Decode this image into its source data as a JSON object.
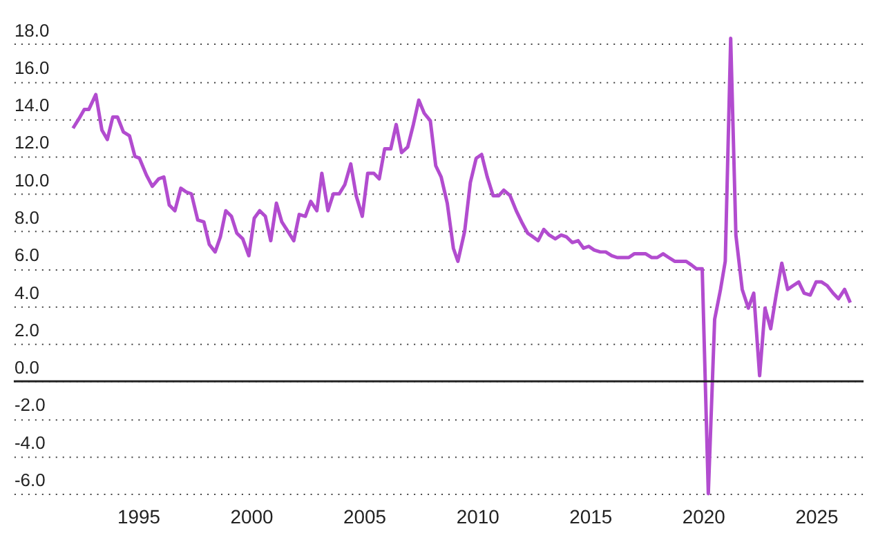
{
  "chart_data": {
    "type": "line",
    "x": [
      1992.12,
      1992.38,
      1992.62,
      1992.82,
      1993.13,
      1993.4,
      1993.64,
      1993.88,
      1994.09,
      1994.35,
      1994.62,
      1994.86,
      1995.06,
      1995.37,
      1995.63,
      1995.91,
      1996.14,
      1996.38,
      1996.63,
      1996.89,
      1997.13,
      1997.36,
      1997.64,
      1997.91,
      1998.15,
      1998.41,
      1998.64,
      1998.88,
      1999.13,
      1999.37,
      1999.63,
      1999.9,
      2000.14,
      2000.38,
      2000.63,
      2000.87,
      2001.12,
      2001.36,
      2001.63,
      2001.89,
      2002.13,
      2002.4,
      2002.64,
      2002.91,
      2003.13,
      2003.4,
      2003.64,
      2003.9,
      2004.15,
      2004.41,
      2004.65,
      2004.92,
      2005.16,
      2005.43,
      2005.67,
      2005.91,
      2006.18,
      2006.42,
      2006.66,
      2006.93,
      2007.18,
      2007.42,
      2007.66,
      2007.93,
      2008.17,
      2008.41,
      2008.68,
      2008.95,
      2009.15,
      2009.45,
      2009.7,
      2009.96,
      2010.2,
      2010.45,
      2010.71,
      2010.96,
      2011.18,
      2011.46,
      2011.73,
      2011.97,
      2012.24,
      2012.48,
      2012.7,
      2012.95,
      2013.19,
      2013.46,
      2013.72,
      2013.96,
      2014.21,
      2014.47,
      2014.71,
      2014.94,
      2015.18,
      2015.45,
      2015.69,
      2015.96,
      2016.2,
      2016.46,
      2016.71,
      2016.95,
      2017.21,
      2017.46,
      2017.73,
      2017.97,
      2018.23,
      2018.48,
      2018.74,
      2018.98,
      2019.25,
      2019.49,
      2019.7,
      2019.96,
      2020.23,
      2020.51,
      2020.77,
      2020.98,
      2021.22,
      2021.45,
      2021.73,
      2022.0,
      2022.24,
      2022.5,
      2022.74,
      2022.99,
      2023.23,
      2023.48,
      2023.74,
      2023.98,
      2024.23,
      2024.47,
      2024.74,
      2025.0,
      2025.24,
      2025.49,
      2025.75,
      2025.99,
      2026.26,
      2026.51
    ],
    "series": [
      {
        "color": "#b24ccf",
        "values": [
          13.5,
          14.0,
          14.5,
          14.5,
          15.3,
          13.4,
          12.9,
          14.1,
          14.1,
          13.3,
          13.1,
          12.0,
          11.9,
          11.0,
          10.4,
          10.8,
          10.9,
          9.4,
          9.1,
          10.3,
          10.1,
          10.0,
          8.6,
          8.5,
          7.3,
          6.9,
          7.7,
          9.1,
          8.8,
          7.9,
          7.6,
          6.7,
          8.7,
          9.1,
          8.8,
          7.5,
          9.5,
          8.5,
          8.0,
          7.5,
          8.9,
          8.8,
          9.6,
          9.1,
          11.1,
          9.1,
          10.0,
          10.0,
          10.5,
          11.6,
          9.9,
          8.8,
          11.1,
          11.1,
          10.8,
          12.4,
          12.4,
          13.7,
          12.2,
          12.5,
          13.7,
          15.0,
          14.3,
          13.9,
          11.5,
          10.9,
          9.5,
          7.1,
          6.4,
          8.0,
          10.6,
          11.9,
          12.1,
          10.9,
          9.9,
          9.9,
          10.2,
          9.9,
          9.1,
          8.5,
          7.9,
          7.7,
          7.5,
          8.1,
          7.8,
          7.6,
          7.8,
          7.7,
          7.4,
          7.5,
          7.1,
          7.2,
          7.0,
          6.9,
          6.9,
          6.7,
          6.6,
          6.6,
          6.6,
          6.8,
          6.8,
          6.8,
          6.6,
          6.6,
          6.8,
          6.6,
          6.4,
          6.4,
          6.4,
          6.2,
          6.0,
          6.0,
          -6.0,
          3.3,
          4.9,
          6.4,
          18.3,
          7.8,
          4.9,
          3.9,
          4.7,
          0.3,
          3.9,
          2.8,
          4.6,
          6.3,
          4.9,
          5.1,
          5.3,
          4.7,
          4.6,
          5.3,
          5.3,
          5.1,
          4.7,
          4.4,
          4.9,
          4.2
        ]
      }
    ],
    "xlim": [
      1989.5,
      2027.1
    ],
    "xticks": [
      1995,
      2000,
      2005,
      2010,
      2015,
      2020,
      2025
    ],
    "ylim": [
      -6.0,
      20.3
    ],
    "yticks": [
      {
        "value": -6,
        "label": "-6.0"
      },
      {
        "value": -4,
        "label": "-4.0"
      },
      {
        "value": -2,
        "label": "-2.0"
      },
      {
        "value": 0,
        "label": "0.0"
      },
      {
        "value": 2,
        "label": "2.0"
      },
      {
        "value": 4,
        "label": "4.0"
      },
      {
        "value": 6,
        "label": "6.0"
      },
      {
        "value": 8,
        "label": "8.0"
      },
      {
        "value": 10,
        "label": "10.0"
      },
      {
        "value": 12,
        "label": "12.0"
      },
      {
        "value": 14,
        "label": "14.0"
      },
      {
        "value": 16,
        "label": "16.0"
      },
      {
        "value": 18,
        "label": "18.0"
      }
    ],
    "ref_lines": [
      {
        "axis": "y",
        "value": 0,
        "color": "#222222"
      }
    ],
    "grid": "y",
    "line_style": "solid",
    "marker": "none"
  }
}
